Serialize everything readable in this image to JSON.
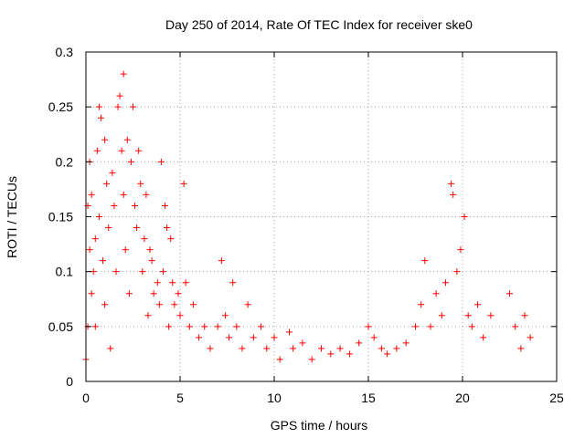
{
  "chart_data": {
    "type": "scatter",
    "title": "Day 250 of 2014, Rate Of TEC Index for receiver ske0",
    "xlabel": "GPS time / hours",
    "ylabel": "ROTI / TECUs",
    "xlim": [
      0,
      25
    ],
    "ylim": [
      0,
      0.3
    ],
    "x_ticks": [
      0,
      5,
      10,
      15,
      20,
      25
    ],
    "y_ticks": [
      0,
      0.05,
      0.1,
      0.15,
      0.2,
      0.25,
      0.3
    ],
    "x_tick_labels": [
      "0",
      "5",
      "10",
      "15",
      "20",
      "25"
    ],
    "y_tick_labels": [
      "0",
      "0.05",
      "0.1",
      "0.15",
      "0.2",
      "0.25",
      "0.3"
    ],
    "grid": true,
    "marker": "+",
    "color": "#ff0000",
    "series": [
      {
        "points": [
          [
            0.0,
            0.02
          ],
          [
            0.1,
            0.05
          ],
          [
            0.1,
            0.16
          ],
          [
            0.2,
            0.12
          ],
          [
            0.2,
            0.2
          ],
          [
            0.3,
            0.08
          ],
          [
            0.3,
            0.17
          ],
          [
            0.4,
            0.1
          ],
          [
            0.5,
            0.13
          ],
          [
            0.5,
            0.05
          ],
          [
            0.6,
            0.21
          ],
          [
            0.7,
            0.25
          ],
          [
            0.7,
            0.15
          ],
          [
            0.8,
            0.24
          ],
          [
            0.9,
            0.11
          ],
          [
            1.0,
            0.22
          ],
          [
            1.0,
            0.07
          ],
          [
            1.1,
            0.18
          ],
          [
            1.2,
            0.14
          ],
          [
            1.3,
            0.03
          ],
          [
            1.4,
            0.19
          ],
          [
            1.5,
            0.16
          ],
          [
            1.6,
            0.1
          ],
          [
            1.7,
            0.25
          ],
          [
            1.8,
            0.26
          ],
          [
            1.9,
            0.21
          ],
          [
            2.0,
            0.17
          ],
          [
            2.0,
            0.28
          ],
          [
            2.1,
            0.12
          ],
          [
            2.2,
            0.22
          ],
          [
            2.3,
            0.08
          ],
          [
            2.4,
            0.2
          ],
          [
            2.5,
            0.25
          ],
          [
            2.6,
            0.16
          ],
          [
            2.7,
            0.14
          ],
          [
            2.8,
            0.21
          ],
          [
            2.9,
            0.18
          ],
          [
            3.0,
            0.1
          ],
          [
            3.1,
            0.13
          ],
          [
            3.2,
            0.17
          ],
          [
            3.3,
            0.06
          ],
          [
            3.4,
            0.12
          ],
          [
            3.5,
            0.11
          ],
          [
            3.6,
            0.08
          ],
          [
            3.8,
            0.09
          ],
          [
            3.9,
            0.07
          ],
          [
            4.0,
            0.2
          ],
          [
            4.1,
            0.1
          ],
          [
            4.2,
            0.16
          ],
          [
            4.3,
            0.14
          ],
          [
            4.4,
            0.05
          ],
          [
            4.5,
            0.13
          ],
          [
            4.6,
            0.09
          ],
          [
            4.7,
            0.07
          ],
          [
            4.9,
            0.08
          ],
          [
            5.0,
            0.06
          ],
          [
            5.2,
            0.18
          ],
          [
            5.3,
            0.09
          ],
          [
            5.5,
            0.05
          ],
          [
            5.7,
            0.07
          ],
          [
            6.0,
            0.04
          ],
          [
            6.3,
            0.05
          ],
          [
            6.6,
            0.03
          ],
          [
            7.0,
            0.05
          ],
          [
            7.2,
            0.11
          ],
          [
            7.4,
            0.06
          ],
          [
            7.6,
            0.04
          ],
          [
            7.8,
            0.09
          ],
          [
            8.0,
            0.05
          ],
          [
            8.3,
            0.03
          ],
          [
            8.6,
            0.07
          ],
          [
            8.9,
            0.04
          ],
          [
            9.3,
            0.05
          ],
          [
            9.6,
            0.03
          ],
          [
            10.0,
            0.04
          ],
          [
            10.3,
            0.02
          ],
          [
            10.8,
            0.045
          ],
          [
            11.0,
            0.03
          ],
          [
            11.5,
            0.035
          ],
          [
            12.0,
            0.02
          ],
          [
            12.5,
            0.03
          ],
          [
            13.0,
            0.025
          ],
          [
            13.5,
            0.03
          ],
          [
            14.0,
            0.025
          ],
          [
            14.5,
            0.035
          ],
          [
            15.0,
            0.05
          ],
          [
            15.3,
            0.04
          ],
          [
            15.7,
            0.03
          ],
          [
            16.0,
            0.025
          ],
          [
            16.5,
            0.03
          ],
          [
            17.0,
            0.035
          ],
          [
            17.5,
            0.05
          ],
          [
            17.8,
            0.07
          ],
          [
            18.0,
            0.11
          ],
          [
            18.3,
            0.05
          ],
          [
            18.6,
            0.08
          ],
          [
            18.9,
            0.06
          ],
          [
            19.1,
            0.09
          ],
          [
            19.4,
            0.18
          ],
          [
            19.5,
            0.17
          ],
          [
            19.7,
            0.1
          ],
          [
            19.9,
            0.12
          ],
          [
            20.1,
            0.15
          ],
          [
            20.3,
            0.06
          ],
          [
            20.5,
            0.05
          ],
          [
            20.8,
            0.07
          ],
          [
            21.1,
            0.04
          ],
          [
            21.5,
            0.06
          ],
          [
            22.5,
            0.08
          ],
          [
            22.8,
            0.05
          ],
          [
            23.1,
            0.03
          ],
          [
            23.3,
            0.06
          ],
          [
            23.6,
            0.04
          ]
        ]
      }
    ]
  }
}
